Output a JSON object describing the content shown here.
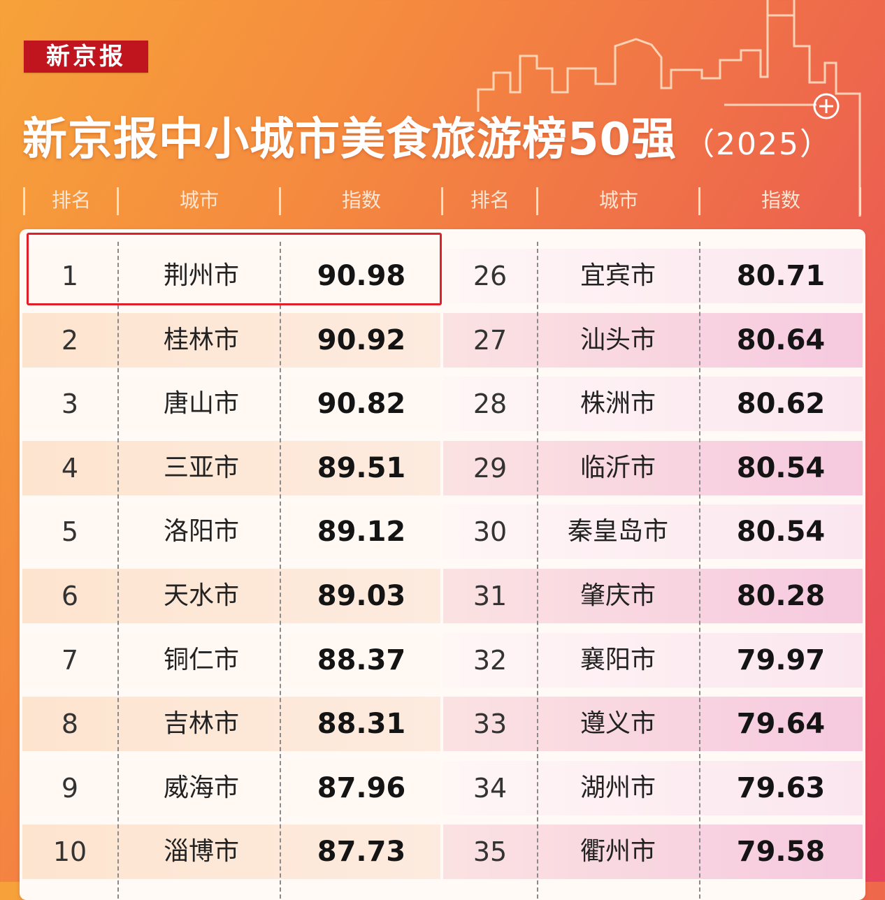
{
  "brand": {
    "name": "新京报"
  },
  "title": {
    "main": "新京报中小城市美食旅游榜50强",
    "year": "（2025）"
  },
  "headers": {
    "left": {
      "rank": "排名",
      "city": "城市",
      "score": "指数"
    },
    "right": {
      "rank": "排名",
      "city": "城市",
      "score": "指数"
    }
  },
  "highlight_rank": "1",
  "colors": {
    "brand_red": "#c0151e",
    "highlight_red": "#e11f2b",
    "accent": "#ee6a4b"
  },
  "table": {
    "left": [
      {
        "rank": "1",
        "city": "荆州市",
        "score": "90.98"
      },
      {
        "rank": "2",
        "city": "桂林市",
        "score": "90.92"
      },
      {
        "rank": "3",
        "city": "唐山市",
        "score": "90.82"
      },
      {
        "rank": "4",
        "city": "三亚市",
        "score": "89.51"
      },
      {
        "rank": "5",
        "city": "洛阳市",
        "score": "89.12"
      },
      {
        "rank": "6",
        "city": "天水市",
        "score": "89.03"
      },
      {
        "rank": "7",
        "city": "铜仁市",
        "score": "88.37"
      },
      {
        "rank": "8",
        "city": "吉林市",
        "score": "88.31"
      },
      {
        "rank": "9",
        "city": "威海市",
        "score": "87.96"
      },
      {
        "rank": "10",
        "city": "淄博市",
        "score": "87.73"
      }
    ],
    "right": [
      {
        "rank": "26",
        "city": "宜宾市",
        "score": "80.71"
      },
      {
        "rank": "27",
        "city": "汕头市",
        "score": "80.64"
      },
      {
        "rank": "28",
        "city": "株洲市",
        "score": "80.62"
      },
      {
        "rank": "29",
        "city": "临沂市",
        "score": "80.54"
      },
      {
        "rank": "30",
        "city": "秦皇岛市",
        "score": "80.54"
      },
      {
        "rank": "31",
        "city": "肇庆市",
        "score": "80.28"
      },
      {
        "rank": "32",
        "city": "襄阳市",
        "score": "79.97"
      },
      {
        "rank": "33",
        "city": "遵义市",
        "score": "79.64"
      },
      {
        "rank": "34",
        "city": "湖州市",
        "score": "79.63"
      },
      {
        "rank": "35",
        "city": "衢州市",
        "score": "79.58"
      }
    ]
  }
}
